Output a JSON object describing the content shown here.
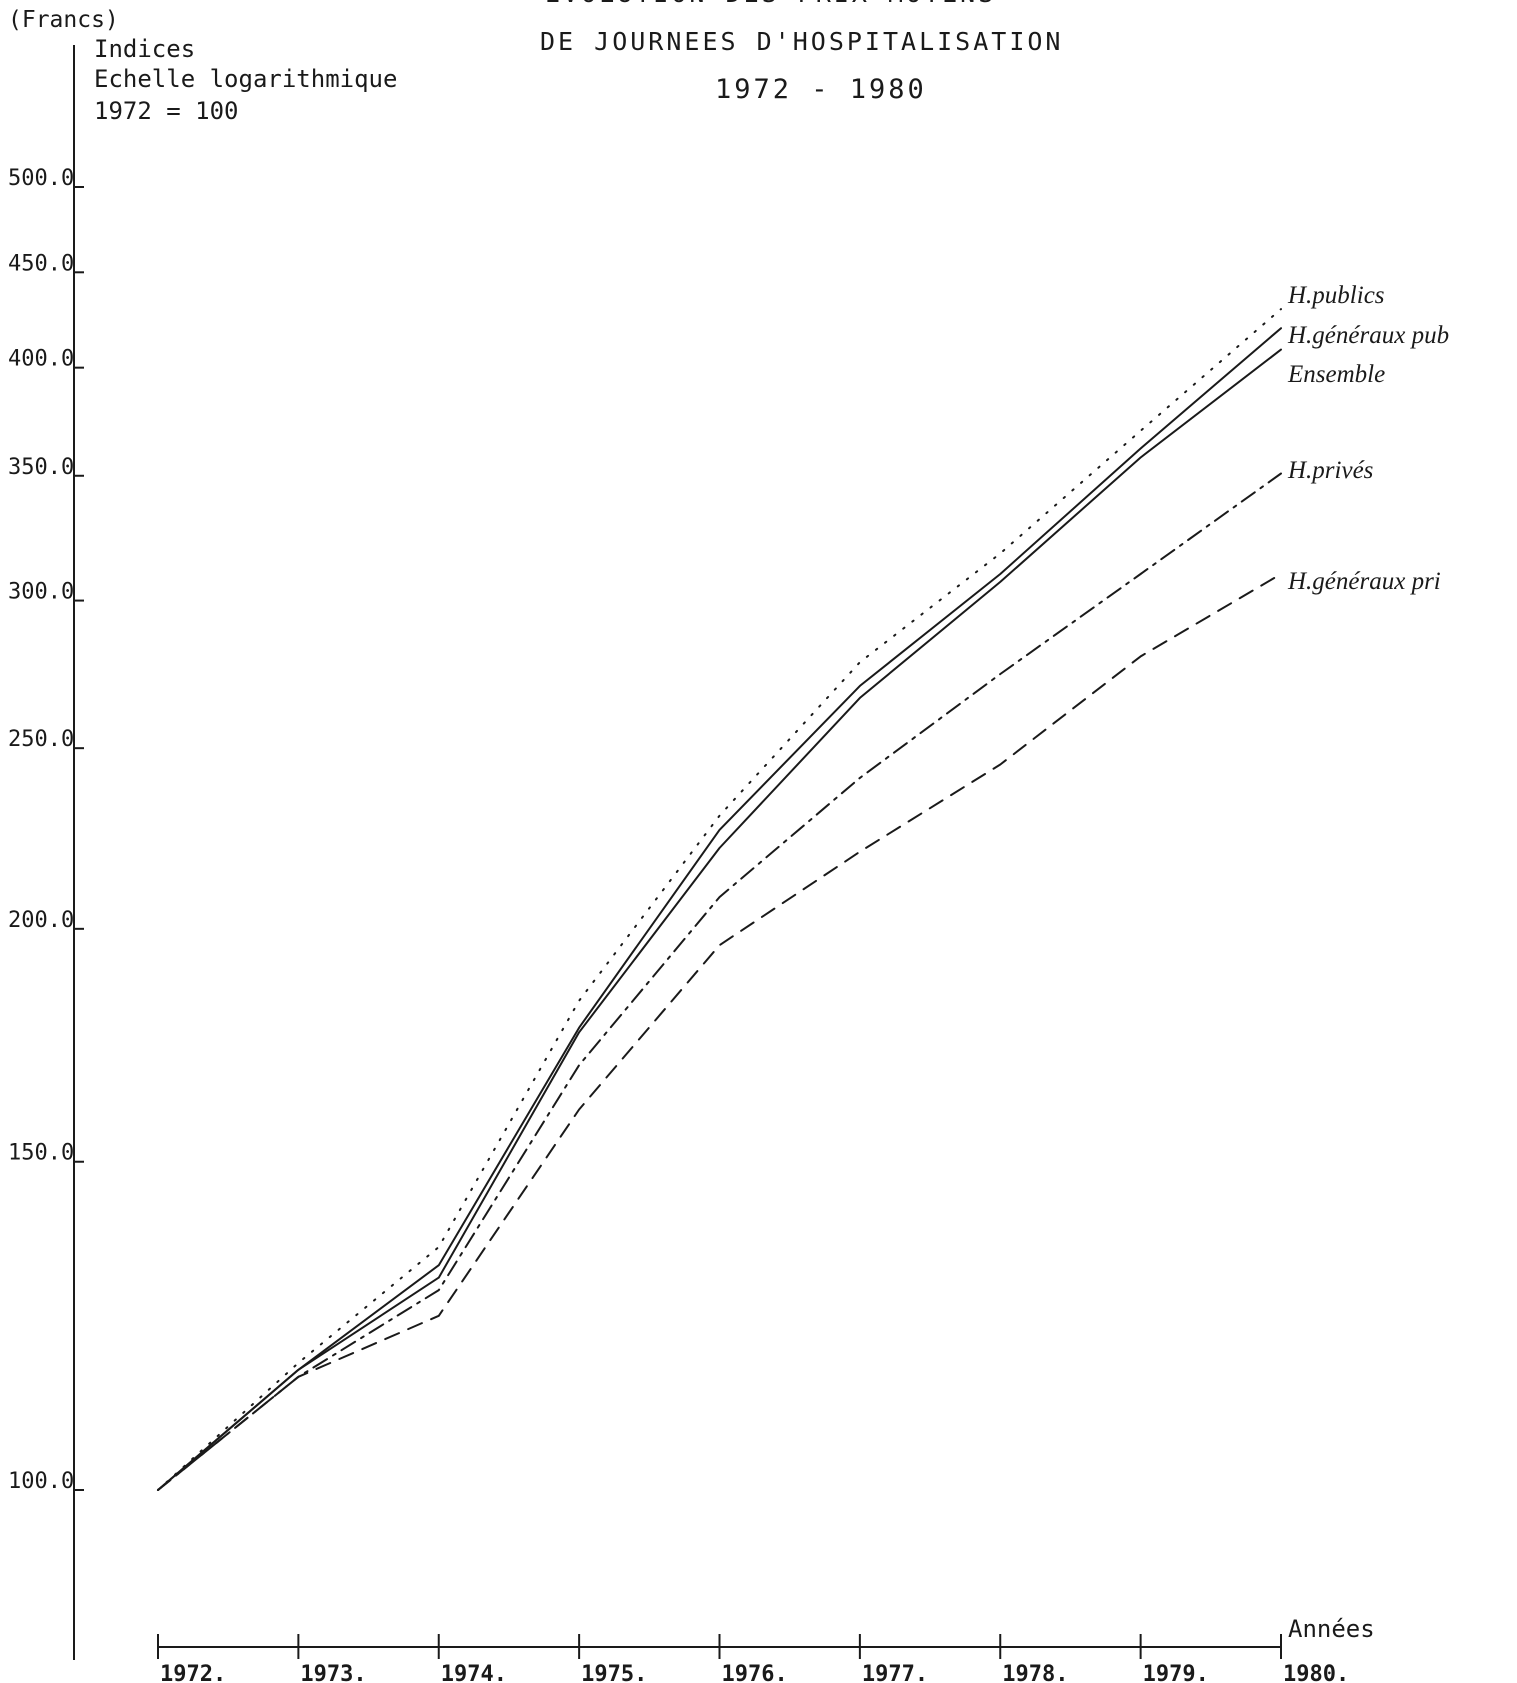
{
  "chart_data": {
    "type": "line",
    "title_lines": [
      "EVOLUTION DES PRIX MOYENS",
      "DE JOURNEES D'HOSPITALISATION",
      "1972 - 1980"
    ],
    "unit_label": "(Francs)",
    "notes": [
      "Indices",
      "Echelle logarithmique",
      "1972 = 100"
    ],
    "xlabel": "Années",
    "x": [
      1972,
      1973,
      1974,
      1975,
      1976,
      1977,
      1978,
      1979,
      1980
    ],
    "x_tick_labels": [
      "1972.",
      "1973.",
      "1974.",
      "1975.",
      "1976.",
      "1977.",
      "1978.",
      "1979.",
      "1980."
    ],
    "y_scale": "log",
    "ylim": [
      85,
      520
    ],
    "y_ticks": [
      100,
      150,
      200,
      250,
      300,
      350,
      400,
      450,
      500
    ],
    "y_tick_labels": [
      "100.0",
      "150.0",
      "200.0",
      "250.0",
      "300.0",
      "350.0",
      "400.0",
      "450.0",
      "500.0"
    ],
    "grid": false,
    "legend": "inline labels at line ends (right)",
    "series": [
      {
        "name": "H.publics",
        "style": "dotted",
        "values": [
          100,
          117,
          135,
          183,
          230,
          278,
          318,
          370,
          430
        ]
      },
      {
        "name": "H.généraux pub",
        "style": "solid",
        "values": [
          100,
          116,
          132,
          177,
          226,
          270,
          310,
          362,
          420
        ]
      },
      {
        "name": "Ensemble",
        "style": "solid",
        "values": [
          100,
          116,
          130,
          176,
          221,
          266,
          307,
          358,
          409
        ]
      },
      {
        "name": "H.privés",
        "style": "dashdot",
        "values": [
          100,
          115,
          128,
          169,
          208,
          241,
          274,
          310,
          351
        ]
      },
      {
        "name": "H.généraux pri",
        "style": "dashed",
        "values": [
          100,
          115,
          124,
          160,
          196,
          220,
          245,
          280,
          310
        ]
      }
    ]
  }
}
